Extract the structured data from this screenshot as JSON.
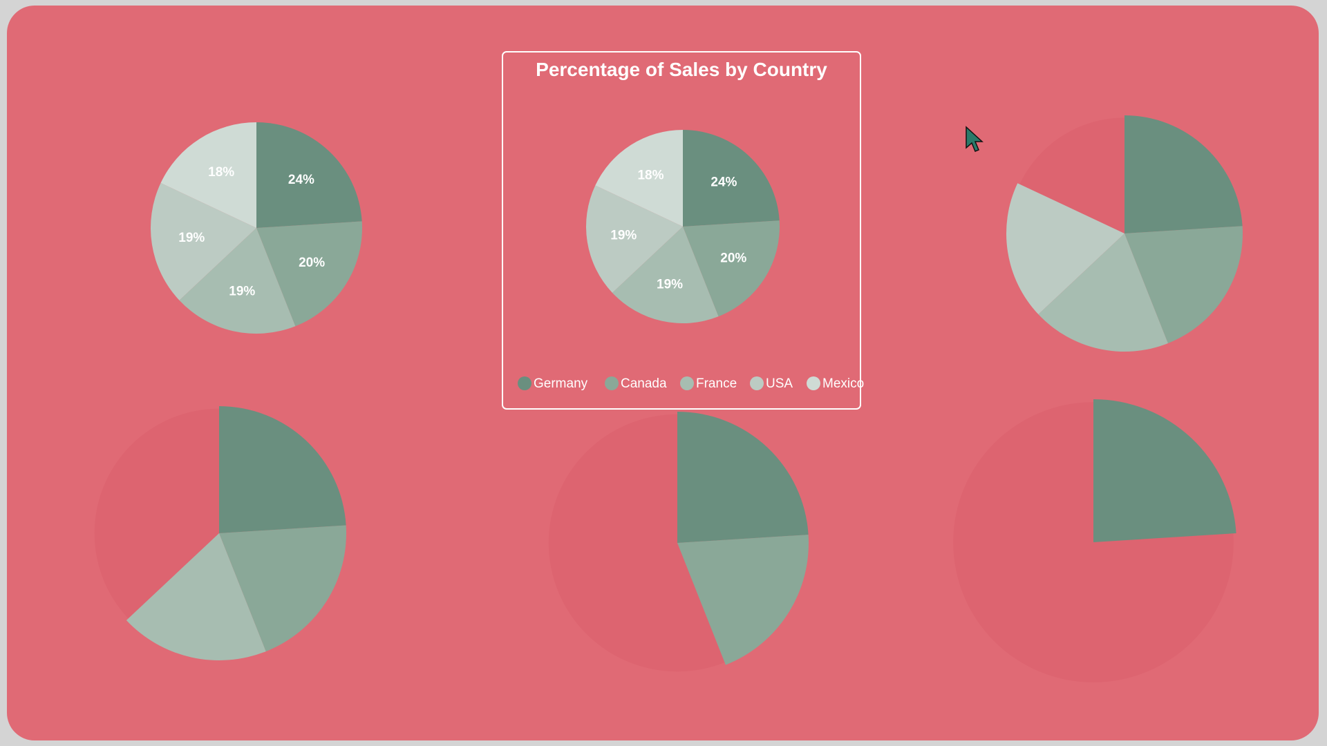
{
  "chart_data": [
    {
      "type": "pie",
      "categories": [
        "Germany",
        "Canada",
        "France",
        "USA",
        "Mexico"
      ],
      "values": [
        24,
        20,
        19,
        19,
        18
      ],
      "data_labels": [
        "24%",
        "20%",
        "19%",
        "19%",
        "18%"
      ],
      "colors": [
        "#6a8f7f",
        "#8aa898",
        "#a7bdb1",
        "#bccbc3",
        "#cfdbd5"
      ]
    },
    {
      "type": "pie",
      "title": "Percentage of Sales by Country",
      "categories": [
        "Germany",
        "Canada",
        "France",
        "USA",
        "Mexico"
      ],
      "values": [
        24,
        20,
        19,
        19,
        18
      ],
      "data_labels": [
        "24%",
        "20%",
        "19%",
        "19%",
        "18%"
      ],
      "legend": "bottom",
      "colors": [
        "#6a8f7f",
        "#8aa898",
        "#a7bdb1",
        "#bccbc3",
        "#cfdbd5"
      ]
    },
    {
      "type": "pie",
      "categories": [
        "Germany",
        "Canada",
        "France",
        "USA"
      ],
      "values": [
        24,
        20,
        19,
        19
      ],
      "colors": [
        "#6a8f7f",
        "#8aa898",
        "#a7bdb1",
        "#bccbc3"
      ]
    },
    {
      "type": "pie",
      "categories": [
        "Germany",
        "Canada",
        "France"
      ],
      "values": [
        24,
        20,
        19
      ],
      "colors": [
        "#6a8f7f",
        "#8aa898",
        "#a7bdb1"
      ]
    },
    {
      "type": "pie",
      "categories": [
        "Germany",
        "Canada"
      ],
      "values": [
        24,
        20
      ],
      "colors": [
        "#6a8f7f",
        "#8aa898"
      ]
    },
    {
      "type": "pie",
      "categories": [
        "Germany"
      ],
      "values": [
        24
      ],
      "colors": [
        "#6a8f7f"
      ]
    }
  ],
  "colors": {
    "background": "#e06a75",
    "outer_frame": "#d4d4d4",
    "ghost_circle": "#dd6470",
    "text": "#ffffff"
  },
  "cursor": {
    "icon": "mouse-pointer-icon",
    "color": "#2a7a6a"
  }
}
